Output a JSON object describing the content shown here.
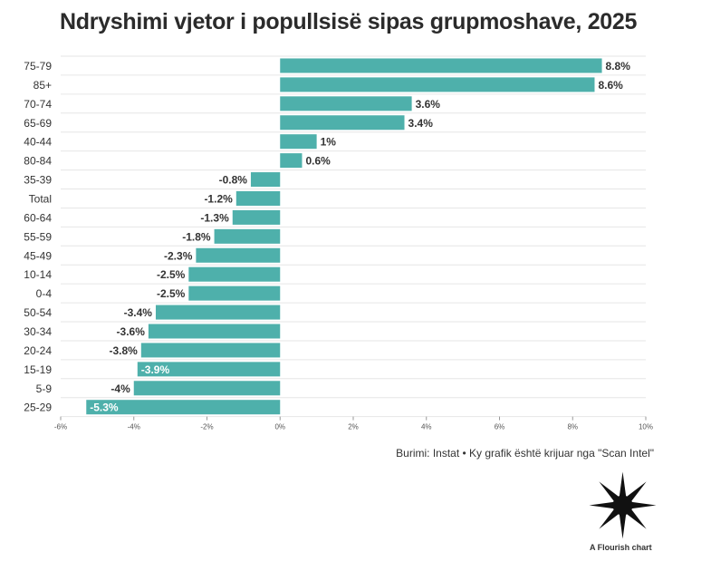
{
  "title": "Ndryshimi vjetor i popullsisë sipas grupmoshave, 2025",
  "source": "Burimi: Instat • Ky grafik është krijuar nga \"Scan Intel\"",
  "credit": "A Flourish chart",
  "colors": {
    "bar": "#4eb0ab",
    "grid": "#e6e6e6",
    "text": "#333333",
    "inside_label": "#ffffff"
  },
  "chart_data": {
    "type": "bar",
    "orientation": "horizontal",
    "categories": [
      "75-79",
      "85+",
      "70-74",
      "65-69",
      "40-44",
      "80-84",
      "35-39",
      "Total",
      "60-64",
      "55-59",
      "45-49",
      "10-14",
      "0-4",
      "50-54",
      "30-34",
      "20-24",
      "15-19",
      "5-9",
      "25-29"
    ],
    "values": [
      8.8,
      8.6,
      3.6,
      3.4,
      1,
      0.6,
      -0.8,
      -1.2,
      -1.3,
      -1.8,
      -2.3,
      -2.5,
      -2.5,
      -3.4,
      -3.6,
      -3.8,
      -3.9,
      -4,
      -5.3
    ],
    "value_labels": [
      "8.8%",
      "8.6%",
      "3.6%",
      "3.4%",
      "1%",
      "0.6%",
      "-0.8%",
      "-1.2%",
      "-1.3%",
      "-1.8%",
      "-2.3%",
      "-2.5%",
      "-2.5%",
      "-3.4%",
      "-3.6%",
      "-3.8%",
      "-3.9%",
      "-4%",
      "-5.3%"
    ],
    "label_inside": [
      false,
      false,
      false,
      false,
      false,
      false,
      false,
      false,
      false,
      false,
      false,
      false,
      false,
      false,
      false,
      false,
      true,
      false,
      true
    ],
    "xlim": [
      -6,
      10
    ],
    "xticks": [
      -6,
      -4,
      -2,
      0,
      2,
      4,
      6,
      8,
      10
    ],
    "xtick_labels": [
      "-6%",
      "-4%",
      "-2%",
      "0%",
      "2%",
      "4%",
      "6%",
      "8%",
      "10%"
    ],
    "grid": true,
    "legend": "none"
  }
}
